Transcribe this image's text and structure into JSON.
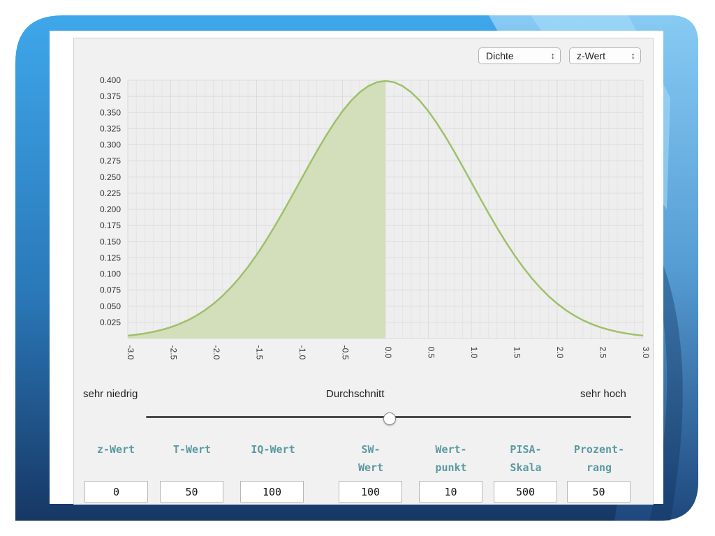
{
  "controls": {
    "display_select": "Dichte",
    "scale_select": "z-Wert"
  },
  "chart_data": {
    "type": "area",
    "distribution": "standard-normal-density",
    "x": [
      -3.0,
      -2.9,
      -2.8,
      -2.7,
      -2.6,
      -2.5,
      -2.4,
      -2.3,
      -2.2,
      -2.1,
      -2.0,
      -1.9,
      -1.8,
      -1.7,
      -1.6,
      -1.5,
      -1.4,
      -1.3,
      -1.2,
      -1.1,
      -1.0,
      -0.9,
      -0.8,
      -0.7,
      -0.6,
      -0.5,
      -0.4,
      -0.3,
      -0.2,
      -0.1,
      0.0,
      0.1,
      0.2,
      0.3,
      0.4,
      0.5,
      0.6,
      0.7,
      0.8,
      0.9,
      1.0,
      1.1,
      1.2,
      1.3,
      1.4,
      1.5,
      1.6,
      1.7,
      1.8,
      1.9,
      2.0,
      2.1,
      2.2,
      2.3,
      2.4,
      2.5,
      2.6,
      2.7,
      2.8,
      2.9,
      3.0
    ],
    "y": [
      0.0044,
      0.006,
      0.0079,
      0.0104,
      0.0136,
      0.0175,
      0.0224,
      0.0283,
      0.0355,
      0.044,
      0.054,
      0.0656,
      0.079,
      0.094,
      0.1109,
      0.1295,
      0.1497,
      0.1714,
      0.1942,
      0.2179,
      0.242,
      0.2661,
      0.2897,
      0.3123,
      0.3332,
      0.3521,
      0.3683,
      0.3814,
      0.391,
      0.397,
      0.3989,
      0.397,
      0.391,
      0.3814,
      0.3683,
      0.3521,
      0.3332,
      0.3123,
      0.2897,
      0.2661,
      0.242,
      0.2179,
      0.1942,
      0.1714,
      0.1497,
      0.1295,
      0.1109,
      0.094,
      0.079,
      0.0656,
      0.054,
      0.044,
      0.0355,
      0.0283,
      0.0224,
      0.0175,
      0.0136,
      0.0104,
      0.0079,
      0.006,
      0.0044
    ],
    "shaded_upto_x": 0.0,
    "xlim": [
      -3.0,
      3.0
    ],
    "ylim": [
      0.0,
      0.4
    ],
    "x_ticks": [
      "-3.0",
      "-2.5",
      "-2.0",
      "-1.5",
      "-1.0",
      "-0.5",
      "0.0",
      "0.5",
      "1.0",
      "1.5",
      "2.0",
      "2.5",
      "3.0"
    ],
    "y_ticks": [
      "0.025",
      "0.050",
      "0.075",
      "0.100",
      "0.125",
      "0.150",
      "0.175",
      "0.200",
      "0.225",
      "0.250",
      "0.275",
      "0.300",
      "0.325",
      "0.350",
      "0.375",
      "0.400"
    ],
    "grid": true,
    "line_color": "#9fc06a",
    "fill_color": "#d3dfbb"
  },
  "scale_labels": {
    "low": "sehr niedrig",
    "mid": "Durchschnitt",
    "high": "sehr hoch"
  },
  "slider": {
    "value": 0.0,
    "min": -3.0,
    "max": 3.0
  },
  "scores": [
    {
      "head1": "z-Wert",
      "head2": "",
      "value": "0"
    },
    {
      "head1": "T-Wert",
      "head2": "",
      "value": "50"
    },
    {
      "head1": "IQ-Wert",
      "head2": "",
      "value": "100"
    },
    {
      "head1": "SW-",
      "head2": "Wert",
      "value": "100"
    },
    {
      "head1": "Wert-",
      "head2": "punkt",
      "value": "10"
    },
    {
      "head1": "PISA-",
      "head2": "Skala",
      "value": "500"
    },
    {
      "head1": "Prozent-",
      "head2": "rang",
      "value": "50"
    }
  ],
  "colors": {
    "header_text": "#5a9aa2",
    "slide_blue_light": "#5fb6ee",
    "slide_blue_dark": "#1c3e6e"
  }
}
